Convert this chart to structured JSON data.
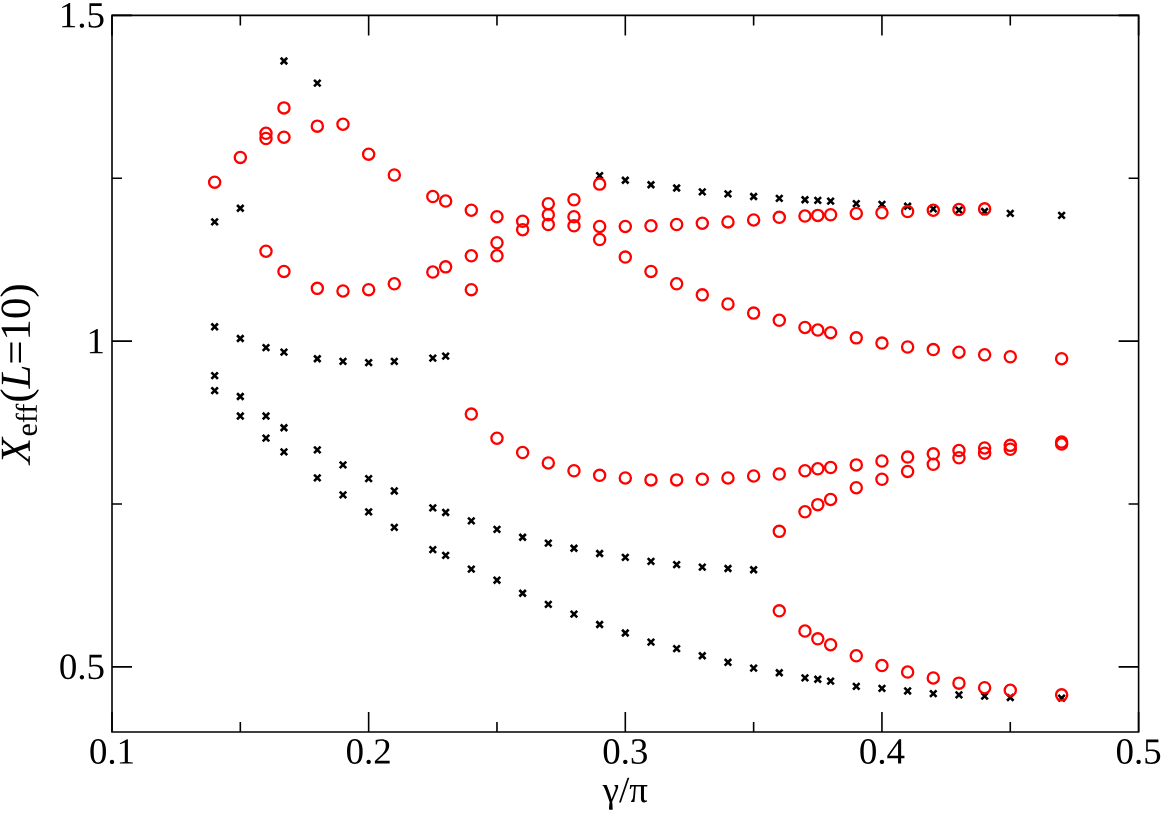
{
  "chart_data": {
    "type": "scatter",
    "xlabel": "γ/π",
    "ylabel": "*X*$_{eff}$(*L*=10)",
    "xlim": [
      0.1,
      0.5
    ],
    "ylim": [
      0.4,
      1.5
    ],
    "xticks": [
      0.1,
      {
        "value": 0.15,
        "label": null
      },
      0.2,
      {
        "value": 0.25,
        "label": null
      },
      0.3,
      {
        "value": 0.35,
        "label": null
      },
      0.4,
      {
        "value": 0.45,
        "label": null
      },
      0.5
    ],
    "yticks": [
      0.5,
      {
        "value": 0.75,
        "label": null
      },
      1,
      {
        "value": 1.25,
        "label": null
      },
      1.5
    ],
    "series": [
      {
        "color": "#000000",
        "marker": "cross",
        "x": [
          0.14,
          0.14,
          0.14,
          0.14,
          0.15,
          0.15,
          0.15,
          0.15,
          0.16,
          0.16,
          0.16,
          0.167,
          0.167,
          0.167,
          0.167,
          0.18,
          0.18,
          0.18,
          0.18,
          0.19,
          0.19,
          0.19,
          0.2,
          0.2,
          0.2,
          0.21,
          0.21,
          0.21,
          0.225,
          0.225,
          0.225,
          0.23,
          0.23,
          0.23,
          0.24,
          0.24,
          0.25,
          0.25,
          0.26,
          0.26,
          0.27,
          0.27,
          0.28,
          0.28,
          0.29,
          0.29,
          0.29,
          0.3,
          0.3,
          0.3,
          0.31,
          0.31,
          0.31,
          0.32,
          0.32,
          0.32,
          0.33,
          0.33,
          0.33,
          0.34,
          0.34,
          0.34,
          0.35,
          0.35,
          0.35,
          0.36,
          0.36,
          0.37,
          0.37,
          0.375,
          0.375,
          0.38,
          0.38,
          0.39,
          0.39,
          0.4,
          0.4,
          0.41,
          0.41,
          0.42,
          0.42,
          0.43,
          0.43,
          0.44,
          0.44,
          0.45,
          0.45,
          0.47,
          0.47
        ],
        "values": [
          1.183,
          1.022,
          0.947,
          0.924,
          1.204,
          1.004,
          0.915,
          0.885,
          0.99,
          0.885,
          0.851,
          1.43,
          0.983,
          0.867,
          0.83,
          1.396,
          0.973,
          0.833,
          0.79,
          0.969,
          0.81,
          0.764,
          0.967,
          0.789,
          0.738,
          0.969,
          0.77,
          0.714,
          0.974,
          0.744,
          0.68,
          0.977,
          0.737,
          0.671,
          0.724,
          0.65,
          0.711,
          0.633,
          0.699,
          0.613,
          0.69,
          0.596,
          0.682,
          0.581,
          1.254,
          0.674,
          0.565,
          1.247,
          0.668,
          0.552,
          1.24,
          0.662,
          0.538,
          1.235,
          0.657,
          0.528,
          1.229,
          0.653,
          0.517,
          1.226,
          0.651,
          0.507,
          1.222,
          0.649,
          0.498,
          1.219,
          0.491,
          1.217,
          0.483,
          1.216,
          0.481,
          1.215,
          0.478,
          1.211,
          0.47,
          1.21,
          0.467,
          1.207,
          0.463,
          1.203,
          0.459,
          1.201,
          0.457,
          1.199,
          0.455,
          1.196,
          0.453,
          1.193,
          0.452
        ]
      },
      {
        "color": "#ff0000",
        "marker": "circle",
        "x": [
          0.14,
          0.15,
          0.16,
          0.16,
          0.16,
          0.167,
          0.167,
          0.167,
          0.18,
          0.18,
          0.19,
          0.19,
          0.2,
          0.2,
          0.21,
          0.21,
          0.225,
          0.225,
          0.23,
          0.23,
          0.24,
          0.24,
          0.24,
          0.24,
          0.25,
          0.25,
          0.25,
          0.25,
          0.26,
          0.26,
          0.26,
          0.27,
          0.27,
          0.27,
          0.27,
          0.28,
          0.28,
          0.28,
          0.28,
          0.29,
          0.29,
          0.29,
          0.29,
          0.3,
          0.3,
          0.3,
          0.31,
          0.31,
          0.31,
          0.32,
          0.32,
          0.32,
          0.33,
          0.33,
          0.33,
          0.34,
          0.34,
          0.34,
          0.35,
          0.35,
          0.35,
          0.36,
          0.36,
          0.36,
          0.36,
          0.36,
          0.37,
          0.37,
          0.37,
          0.37,
          0.37,
          0.375,
          0.375,
          0.375,
          0.375,
          0.375,
          0.38,
          0.38,
          0.38,
          0.38,
          0.38,
          0.39,
          0.39,
          0.39,
          0.39,
          0.39,
          0.4,
          0.4,
          0.4,
          0.4,
          0.4,
          0.41,
          0.41,
          0.41,
          0.41,
          0.41,
          0.42,
          0.42,
          0.42,
          0.42,
          0.42,
          0.43,
          0.43,
          0.43,
          0.43,
          0.43,
          0.44,
          0.44,
          0.44,
          0.44,
          0.44,
          0.45,
          0.45,
          0.45,
          0.45,
          0.47,
          0.47,
          0.47,
          0.47
        ],
        "values": [
          1.244,
          1.282,
          1.319,
          1.311,
          1.138,
          1.358,
          1.313,
          1.107,
          1.33,
          1.081,
          1.333,
          1.077,
          1.287,
          1.079,
          1.255,
          1.088,
          1.222,
          1.106,
          1.215,
          1.114,
          1.201,
          1.131,
          1.079,
          0.888,
          1.191,
          1.151,
          1.131,
          0.851,
          1.184,
          1.171,
          0.829,
          1.211,
          1.194,
          1.179,
          0.813,
          1.217,
          1.191,
          1.177,
          0.801,
          1.241,
          1.176,
          1.156,
          0.794,
          1.176,
          1.129,
          0.79,
          1.177,
          1.107,
          0.787,
          1.179,
          1.088,
          0.787,
          1.181,
          1.071,
          0.788,
          1.183,
          1.057,
          0.79,
          1.186,
          1.043,
          0.793,
          1.19,
          1.032,
          0.796,
          0.708,
          0.586,
          1.192,
          1.021,
          0.801,
          0.738,
          0.555,
          1.193,
          1.017,
          0.804,
          0.749,
          0.543,
          1.194,
          1.013,
          0.806,
          0.757,
          0.534,
          1.196,
          1.005,
          0.81,
          0.775,
          0.517,
          1.197,
          0.997,
          0.816,
          0.788,
          0.502,
          1.199,
          0.991,
          0.822,
          0.8,
          0.492,
          1.201,
          0.987,
          0.827,
          0.811,
          0.483,
          1.202,
          0.983,
          0.832,
          0.821,
          0.475,
          1.203,
          0.979,
          0.836,
          0.828,
          0.468,
          0.976,
          0.84,
          0.834,
          0.464,
          0.973,
          0.845,
          0.842,
          0.457
        ]
      }
    ]
  }
}
